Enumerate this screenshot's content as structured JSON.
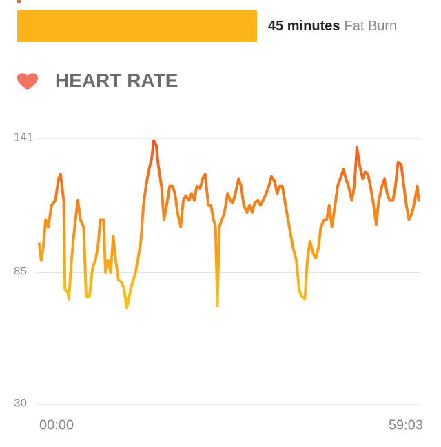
{
  "zone": {
    "duration": "45 minutes",
    "label": "Fat Burn",
    "color": "#fbb31a"
  },
  "chart_data": {
    "type": "line",
    "title": "HEART RATE",
    "x": [
      0.0,
      0.3,
      0.6,
      1.0,
      1.4,
      1.9,
      2.5,
      3.0,
      3.3,
      3.8,
      4.0,
      4.4,
      4.6,
      5.0,
      5.5,
      6.0,
      6.4,
      6.9,
      7.3,
      7.8,
      8.3,
      8.7,
      9.1,
      9.5,
      10.0,
      10.3,
      10.7,
      11.1,
      11.5,
      11.9,
      12.3,
      12.8,
      13.2,
      13.6,
      14.0,
      14.5,
      14.9,
      15.3,
      15.8,
      16.2,
      16.6,
      17.0,
      17.5,
      17.8,
      18.2,
      18.5,
      19.0,
      19.4,
      19.8,
      20.3,
      20.7,
      21.1,
      21.5,
      22.0,
      22.4,
      22.8,
      23.3,
      23.7,
      24.1,
      24.5,
      25.0,
      25.4,
      25.8,
      26.3,
      26.7,
      27.1,
      27.4,
      27.7,
      28.0,
      28.4,
      28.8,
      29.3,
      29.7,
      30.1,
      30.5,
      31.0,
      31.4,
      31.8,
      32.3,
      32.7,
      33.1,
      33.5,
      34.0,
      34.4,
      34.8,
      35.3,
      35.7,
      36.1,
      36.6,
      37.0,
      37.4,
      37.8,
      38.3,
      38.7,
      39.1,
      39.5,
      40.0,
      40.4,
      40.8,
      41.3,
      41.7,
      42.1,
      42.6,
      43.0,
      43.4,
      43.8,
      44.3,
      44.7,
      45.1,
      45.5,
      46.0,
      46.4,
      46.8,
      47.3,
      47.7,
      48.1,
      48.6,
      49.0,
      49.4,
      49.8,
      50.3,
      50.7,
      51.1,
      51.5,
      52.0,
      52.4,
      52.8,
      53.3,
      53.7,
      54.1,
      54.5,
      55.0,
      55.4,
      55.8,
      56.3,
      56.7,
      57.1,
      57.5,
      58.0,
      58.4,
      58.8,
      59.0
    ],
    "values": [
      97,
      90,
      95,
      107,
      104,
      113,
      115,
      124,
      126,
      115,
      78,
      77,
      74,
      90,
      104,
      115,
      107,
      104,
      75,
      75,
      87,
      90,
      95,
      107,
      107,
      85,
      90,
      85,
      100,
      90,
      82,
      81,
      78,
      70,
      75,
      81,
      84,
      90,
      98,
      113,
      121,
      127,
      133,
      140,
      138,
      130,
      121,
      107,
      113,
      121,
      121,
      118,
      110,
      104,
      115,
      117,
      115,
      118,
      115,
      121,
      120,
      124,
      126,
      113,
      113,
      107,
      104,
      71,
      104,
      107,
      110,
      118,
      115,
      114,
      118,
      124,
      121,
      113,
      110,
      113,
      110,
      114,
      115,
      113,
      115,
      118,
      121,
      125,
      123,
      118,
      121,
      121,
      113,
      107,
      101,
      95,
      90,
      78,
      75,
      74,
      90,
      98,
      93,
      91,
      95,
      104,
      107,
      107,
      113,
      104,
      113,
      121,
      124,
      128,
      124,
      121,
      115,
      121,
      137,
      130,
      124,
      127,
      126,
      121,
      113,
      105,
      115,
      121,
      124,
      118,
      115,
      115,
      121,
      131,
      130,
      121,
      113,
      107,
      110,
      115,
      121,
      115
    ],
    "colors": [
      "#f4571f",
      "#fcc513"
    ],
    "xlim": [
      0,
      59.05
    ],
    "xticks": [
      {
        "value": 0,
        "label": "00:00"
      },
      {
        "value": 59.05,
        "label": "59:03"
      }
    ],
    "ylim": [
      30,
      141
    ],
    "yticks": [
      30,
      85,
      141
    ],
    "grid": true
  }
}
